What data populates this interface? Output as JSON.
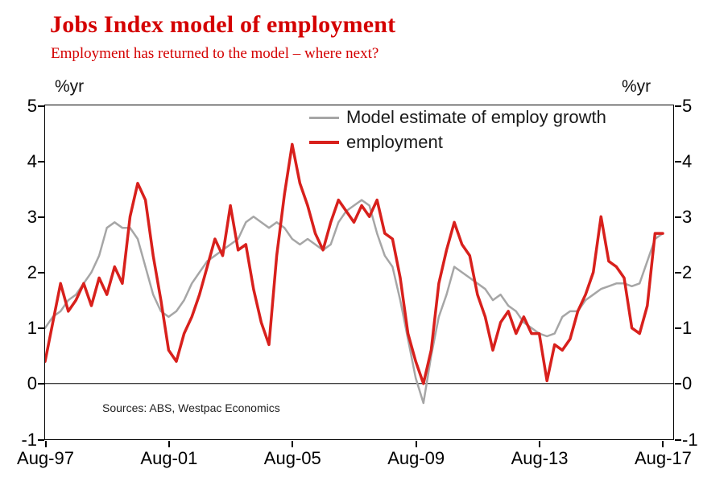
{
  "header": {
    "title": "Jobs Index model of employment",
    "subtitle": "Employment has returned to the model – where next?"
  },
  "colors": {
    "accent_red": "#d40000",
    "model_gray": "#a6a6a6",
    "employment_red": "#d8201c"
  },
  "chart_data": {
    "type": "line",
    "unit": "%yr",
    "source_note": "Sources: ABS, Westpac Economics",
    "grid": false,
    "legend_position": "top-center-inside",
    "xlim": [
      1997.58,
      2017.92
    ],
    "ylim": [
      -1,
      5
    ],
    "y_ticks": [
      {
        "label": "5",
        "value": 5
      },
      {
        "label": "4",
        "value": 4
      },
      {
        "label": "3",
        "value": 3
      },
      {
        "label": "2",
        "value": 2
      },
      {
        "label": "1",
        "value": 1
      },
      {
        "label": "0",
        "value": 0
      },
      {
        "label": "-1",
        "value": -1
      }
    ],
    "x_ticks": [
      {
        "label": "Aug-97",
        "value": 1997.58
      },
      {
        "label": "Aug-01",
        "value": 2001.58
      },
      {
        "label": "Aug-05",
        "value": 2005.58
      },
      {
        "label": "Aug-09",
        "value": 2009.58
      },
      {
        "label": "Aug-13",
        "value": 2013.58
      },
      {
        "label": "Aug-17",
        "value": 2017.58
      }
    ],
    "x": [
      1997.58,
      1997.83,
      1998.08,
      1998.33,
      1998.58,
      1998.83,
      1999.08,
      1999.33,
      1999.58,
      1999.83,
      2000.08,
      2000.33,
      2000.58,
      2000.83,
      2001.08,
      2001.33,
      2001.58,
      2001.83,
      2002.08,
      2002.33,
      2002.58,
      2002.83,
      2003.08,
      2003.33,
      2003.58,
      2003.83,
      2004.08,
      2004.33,
      2004.58,
      2004.83,
      2005.08,
      2005.33,
      2005.58,
      2005.83,
      2006.08,
      2006.33,
      2006.58,
      2006.83,
      2007.08,
      2007.33,
      2007.58,
      2007.83,
      2008.08,
      2008.33,
      2008.58,
      2008.83,
      2009.08,
      2009.33,
      2009.58,
      2009.83,
      2010.08,
      2010.33,
      2010.58,
      2010.83,
      2011.08,
      2011.33,
      2011.58,
      2011.83,
      2012.08,
      2012.33,
      2012.58,
      2012.83,
      2013.08,
      2013.33,
      2013.58,
      2013.83,
      2014.08,
      2014.33,
      2014.58,
      2014.83,
      2015.08,
      2015.33,
      2015.58,
      2015.83,
      2016.08,
      2016.33,
      2016.58,
      2016.83,
      2017.08,
      2017.33,
      2017.58
    ],
    "series": [
      {
        "name": "Model estimate of employ growth",
        "color": "#a6a6a6",
        "stroke_width": 2.5,
        "values": [
          1.0,
          1.2,
          1.3,
          1.5,
          1.6,
          1.8,
          2.0,
          2.3,
          2.8,
          2.9,
          2.8,
          2.8,
          2.6,
          2.1,
          1.6,
          1.3,
          1.2,
          1.3,
          1.5,
          1.8,
          2.0,
          2.2,
          2.3,
          2.4,
          2.5,
          2.6,
          2.9,
          3.0,
          2.9,
          2.8,
          2.9,
          2.8,
          2.6,
          2.5,
          2.6,
          2.5,
          2.4,
          2.5,
          2.9,
          3.1,
          3.2,
          3.3,
          3.2,
          2.7,
          2.3,
          2.1,
          1.5,
          0.8,
          0.1,
          -0.35,
          0.5,
          1.2,
          1.6,
          2.1,
          2.0,
          1.9,
          1.8,
          1.7,
          1.5,
          1.6,
          1.4,
          1.3,
          1.1,
          1.0,
          0.9,
          0.85,
          0.9,
          1.2,
          1.3,
          1.3,
          1.5,
          1.6,
          1.7,
          1.75,
          1.8,
          1.8,
          1.75,
          1.8,
          2.2,
          2.6,
          2.7
        ]
      },
      {
        "name": "employment",
        "color": "#d8201c",
        "stroke_width": 3.5,
        "values": [
          0.4,
          1.1,
          1.8,
          1.3,
          1.5,
          1.8,
          1.4,
          1.9,
          1.6,
          2.1,
          1.8,
          3.0,
          3.6,
          3.3,
          2.3,
          1.5,
          0.6,
          0.4,
          0.9,
          1.2,
          1.6,
          2.1,
          2.6,
          2.3,
          3.2,
          2.4,
          2.5,
          1.7,
          1.1,
          0.7,
          2.3,
          3.4,
          4.3,
          3.6,
          3.2,
          2.7,
          2.4,
          2.9,
          3.3,
          3.1,
          2.9,
          3.2,
          3.0,
          3.3,
          2.7,
          2.6,
          1.9,
          0.9,
          0.4,
          0.0,
          0.6,
          1.8,
          2.4,
          2.9,
          2.5,
          2.3,
          1.6,
          1.2,
          0.6,
          1.1,
          1.3,
          0.9,
          1.2,
          0.9,
          0.9,
          0.05,
          0.7,
          0.6,
          0.8,
          1.3,
          1.6,
          2.0,
          3.0,
          2.2,
          2.1,
          1.9,
          1.0,
          0.9,
          1.4,
          2.7,
          2.7
        ]
      }
    ]
  }
}
